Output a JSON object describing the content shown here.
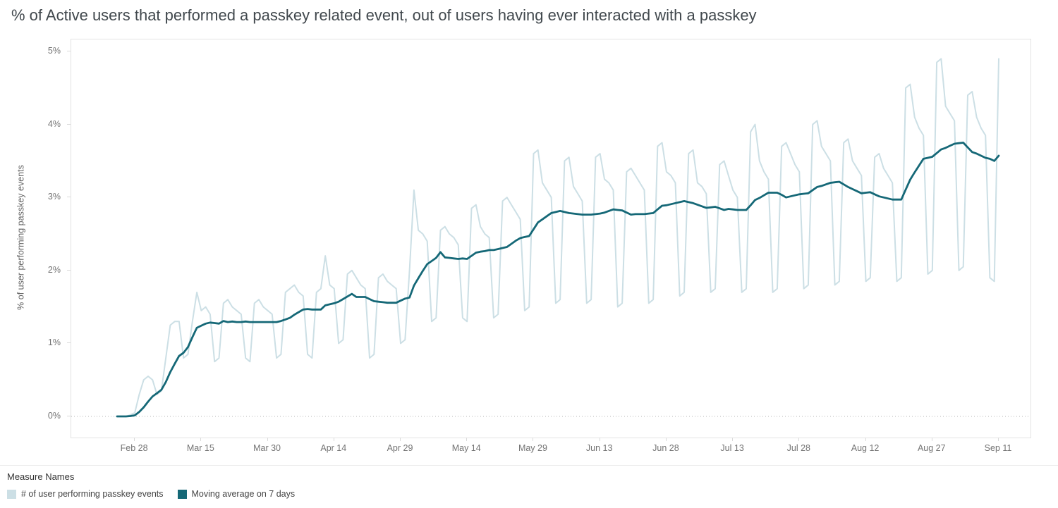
{
  "chart_data": {
    "type": "line",
    "title": "% of Active users that performed a passkey related event, out of users having ever interacted with a passkey",
    "xlabel": "",
    "ylabel": "% of user performing passkey events",
    "ylim": [
      0,
      5
    ],
    "grid": "dotted zero line only",
    "legend_title": "Measure Names",
    "legend_position": "bottom-left",
    "x_unit": "day",
    "y_ticks": [
      {
        "label": "0%",
        "value": 0
      },
      {
        "label": "1%",
        "value": 1
      },
      {
        "label": "2%",
        "value": 2
      },
      {
        "label": "3%",
        "value": 3
      },
      {
        "label": "4%",
        "value": 4
      },
      {
        "label": "5%",
        "value": 5
      }
    ],
    "x_ticks": [
      {
        "label": "Feb 28",
        "day": 4
      },
      {
        "label": "Mar 15",
        "day": 19
      },
      {
        "label": "Mar 30",
        "day": 34
      },
      {
        "label": "Apr 14",
        "day": 49
      },
      {
        "label": "Apr 29",
        "day": 64
      },
      {
        "label": "May 14",
        "day": 79
      },
      {
        "label": "May 29",
        "day": 94
      },
      {
        "label": "Jun 13",
        "day": 109
      },
      {
        "label": "Jun 28",
        "day": 124
      },
      {
        "label": "Jul 13",
        "day": 139
      },
      {
        "label": "Jul 28",
        "day": 154
      },
      {
        "label": "Aug 12",
        "day": 169
      },
      {
        "label": "Aug 27",
        "day": 184
      },
      {
        "label": "Sep 11",
        "day": 199
      }
    ],
    "series": [
      {
        "name": "# of user performing passkey events",
        "color": "#ccdfe5",
        "values": [
          0,
          0,
          0,
          0.02,
          0.05,
          0.3,
          0.5,
          0.55,
          0.5,
          0.3,
          0.35,
          0.8,
          1.25,
          1.3,
          1.3,
          0.8,
          0.85,
          1.3,
          1.7,
          1.45,
          1.5,
          1.4,
          0.75,
          0.8,
          1.55,
          1.6,
          1.5,
          1.45,
          1.4,
          0.8,
          0.75,
          1.55,
          1.6,
          1.5,
          1.45,
          1.4,
          0.8,
          0.85,
          1.7,
          1.75,
          1.8,
          1.7,
          1.65,
          0.85,
          0.8,
          1.7,
          1.75,
          2.2,
          1.8,
          1.75,
          1.0,
          1.05,
          1.95,
          2.0,
          1.9,
          1.8,
          1.75,
          0.8,
          0.85,
          1.9,
          1.95,
          1.85,
          1.8,
          1.75,
          1.0,
          1.05,
          2.0,
          3.1,
          2.55,
          2.5,
          2.4,
          1.3,
          1.35,
          2.55,
          2.6,
          2.5,
          2.45,
          2.35,
          1.35,
          1.3,
          2.85,
          2.9,
          2.6,
          2.5,
          2.45,
          1.35,
          1.4,
          2.95,
          3.0,
          2.9,
          2.8,
          2.7,
          1.45,
          1.5,
          3.6,
          3.65,
          3.2,
          3.1,
          3.0,
          1.55,
          1.6,
          3.5,
          3.55,
          3.15,
          3.05,
          2.95,
          1.55,
          1.6,
          3.55,
          3.6,
          3.25,
          3.2,
          3.1,
          1.5,
          1.55,
          3.35,
          3.4,
          3.3,
          3.2,
          3.1,
          1.55,
          1.6,
          3.7,
          3.75,
          3.35,
          3.3,
          3.2,
          1.65,
          1.7,
          3.6,
          3.65,
          3.2,
          3.15,
          3.05,
          1.7,
          1.75,
          3.45,
          3.5,
          3.3,
          3.1,
          3.0,
          1.7,
          1.75,
          3.9,
          4.0,
          3.5,
          3.35,
          3.25,
          1.7,
          1.75,
          3.7,
          3.75,
          3.6,
          3.45,
          3.35,
          1.75,
          1.8,
          4.0,
          4.05,
          3.7,
          3.6,
          3.5,
          1.8,
          1.85,
          3.75,
          3.8,
          3.5,
          3.4,
          3.3,
          1.85,
          1.9,
          3.55,
          3.6,
          3.4,
          3.3,
          3.2,
          1.85,
          1.9,
          4.5,
          4.55,
          4.1,
          3.95,
          3.85,
          1.95,
          2.0,
          4.85,
          4.9,
          4.25,
          4.15,
          4.05,
          2.0,
          2.05,
          4.4,
          4.45,
          4.1,
          3.95,
          3.85,
          1.9,
          1.85,
          4.9
        ]
      },
      {
        "name": "Moving average on 7 days",
        "color": "#156877",
        "window": 7,
        "derived": "trailing 7-day mean of series 0"
      }
    ]
  }
}
